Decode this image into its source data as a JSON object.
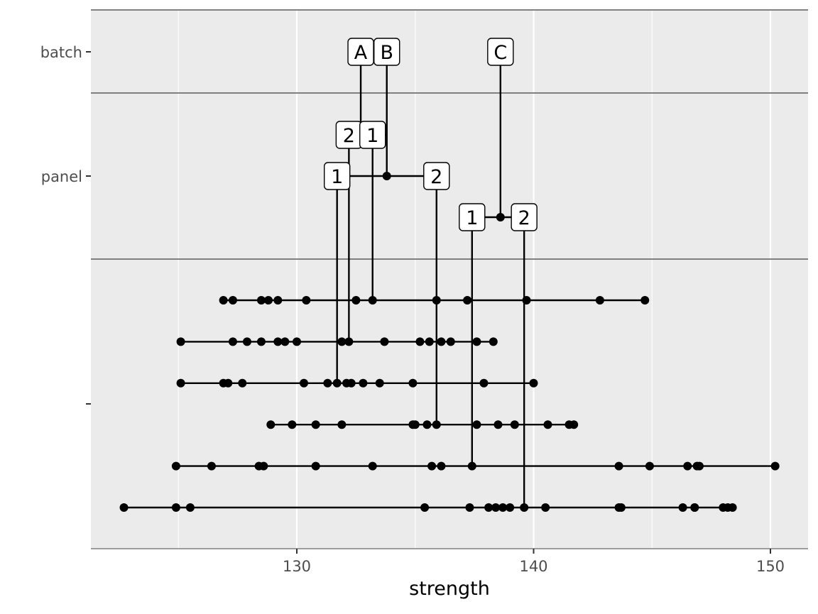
{
  "chart_data": {
    "type": "scatter",
    "title": "",
    "xlabel": "strength",
    "ylabel": "",
    "xlim": [
      121.5,
      151.6
    ],
    "x_ticks": [
      130,
      140,
      150
    ],
    "y_tick_labels": [
      "batch",
      "panel",
      ""
    ],
    "grid": true,
    "colors": {
      "panel_bg": "#ebebeb",
      "grid": "#ffffff",
      "ink": "#000000",
      "frame": "#808080"
    },
    "tree": {
      "batches": [
        {
          "label": "A",
          "x": 132.7
        },
        {
          "label": "B",
          "x": 133.8
        },
        {
          "label": "C",
          "x": 138.6
        }
      ],
      "panels": [
        {
          "label": "2",
          "batch": "A",
          "x": 132.2,
          "row": "upper"
        },
        {
          "label": "1",
          "batch": "B",
          "x": 133.2,
          "row": "upper"
        },
        {
          "label": "1",
          "batch": "B",
          "x": 131.7,
          "row": "middle"
        },
        {
          "label": "2",
          "batch": "B",
          "x": 135.9,
          "row": "middle"
        },
        {
          "label": "1",
          "batch": "C",
          "x": 137.4,
          "row": "lower"
        },
        {
          "label": "2",
          "batch": "C",
          "x": 139.6,
          "row": "lower"
        }
      ],
      "batch_hubs": [
        {
          "batch": "B",
          "x": 133.8,
          "row": "middle"
        },
        {
          "batch": "C",
          "x": 138.6,
          "row": "lower"
        }
      ]
    },
    "series": [
      {
        "row": 1,
        "panel_x": 133.2,
        "values": [
          126.9,
          127.3,
          128.5,
          128.8,
          129.2,
          130.4,
          132.5,
          133.2,
          135.9,
          137.2,
          139.7,
          142.8,
          144.7
        ]
      },
      {
        "row": 2,
        "panel_x": 132.2,
        "values": [
          125.1,
          127.3,
          127.9,
          128.5,
          129.2,
          129.5,
          130.0,
          131.9,
          132.2,
          133.7,
          135.2,
          135.6,
          136.1,
          136.5,
          137.6,
          138.3
        ]
      },
      {
        "row": 3,
        "panel_x": 131.7,
        "values": [
          125.1,
          126.9,
          127.1,
          127.7,
          130.3,
          131.3,
          131.7,
          132.1,
          132.3,
          132.8,
          133.5,
          134.9,
          137.9,
          140.0
        ]
      },
      {
        "row": 4,
        "panel_x": 135.9,
        "values": [
          128.9,
          129.8,
          130.8,
          131.9,
          134.9,
          135.0,
          135.5,
          135.9,
          137.6,
          138.5,
          139.2,
          140.6,
          141.5,
          141.7
        ]
      },
      {
        "row": 5,
        "panel_x": 137.4,
        "values": [
          124.9,
          126.4,
          128.4,
          128.6,
          130.8,
          133.2,
          135.7,
          136.1,
          137.4,
          143.6,
          144.9,
          146.5,
          146.9,
          147.0,
          150.2
        ]
      },
      {
        "row": 6,
        "panel_x": 139.6,
        "values": [
          122.7,
          124.9,
          125.5,
          135.4,
          137.3,
          138.1,
          138.4,
          138.7,
          139.0,
          139.6,
          140.5,
          143.6,
          143.7,
          146.3,
          146.8,
          146.8,
          148.0,
          148.2,
          148.4
        ]
      }
    ]
  }
}
